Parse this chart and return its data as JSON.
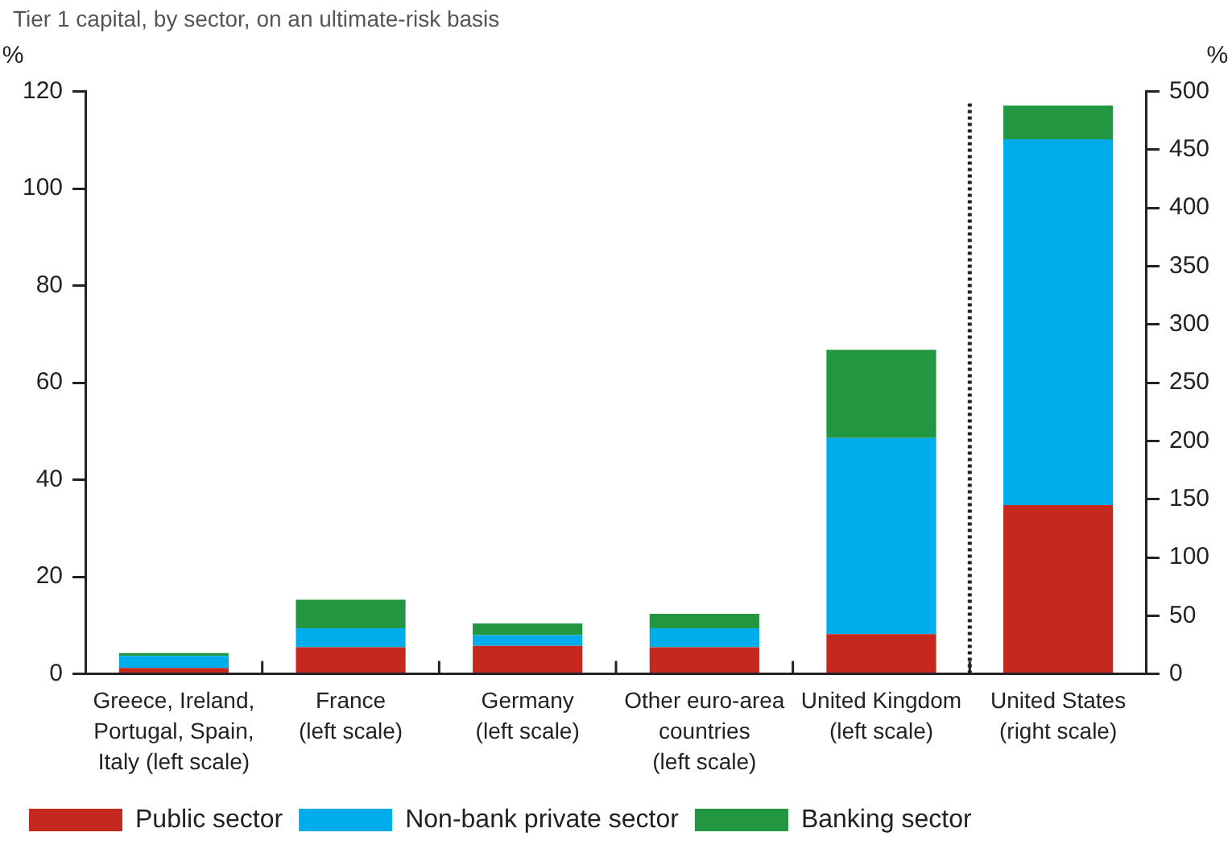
{
  "chart_data": {
    "type": "bar",
    "stacked": true,
    "title": "Tier 1 capital, by sector, on an ultimate-risk basis",
    "ylabel": "%",
    "y2label": "%",
    "categories": [
      "Greece, Ireland, Portugal, Spain, Italy (left scale)",
      "France (left scale)",
      "Germany (left scale)",
      "Other euro-area countries (left scale)",
      "United Kingdom (left scale)",
      "United States (right scale)"
    ],
    "series": [
      {
        "name": "Public sector",
        "color": "#c4281e",
        "values": [
          1.2,
          5.5,
          5.8,
          5.5,
          8.2,
          null
        ]
      },
      {
        "name": "Non-bank private sector",
        "color": "#00adec",
        "values": [
          2.5,
          3.9,
          2.2,
          3.9,
          40.4,
          null
        ]
      },
      {
        "name": "Banking sector",
        "color": "#229640",
        "values": [
          0.6,
          5.9,
          2.4,
          3.0,
          18.2,
          null
        ]
      },
      {
        "color": "#c4281e",
        "axis": "y2",
        "values": [
          null,
          null,
          null,
          null,
          null,
          145
        ]
      },
      {
        "color": "#00adec",
        "axis": "y2",
        "values": [
          null,
          null,
          null,
          null,
          null,
          314
        ]
      },
      {
        "color": "#229640",
        "axis": "y2",
        "values": [
          null,
          null,
          null,
          null,
          null,
          29
        ]
      }
    ],
    "ylim": [
      0,
      120
    ],
    "yticks": [
      0,
      20,
      40,
      60,
      80,
      100,
      120
    ],
    "y2lim": [
      0,
      500
    ],
    "y2ticks": [
      0,
      50,
      100,
      150,
      200,
      250,
      300,
      350,
      400,
      450,
      500
    ],
    "grid": false,
    "legend": "bottom"
  }
}
